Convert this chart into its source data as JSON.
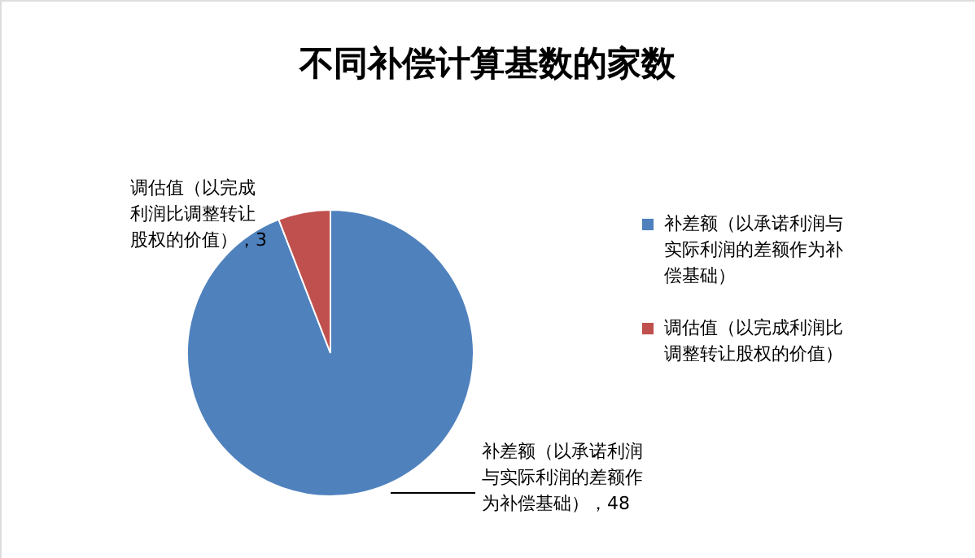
{
  "chart_data": {
    "type": "pie",
    "title": "不同补偿计算基数的家数",
    "categories": [
      "补差额（以承诺利润与实际利润的差额作为补偿基础）",
      "调估值（以完成利润比调整转让股权的价值）"
    ],
    "values": [
      48,
      3
    ],
    "colors": [
      "#4f81bd",
      "#c0504d"
    ],
    "value_labels": [
      "补差额（以承诺利润与实际利润的差额作为补偿基础），48",
      "调估值（以完成利润比调整转让股权的价值），3"
    ],
    "legend": "right"
  }
}
